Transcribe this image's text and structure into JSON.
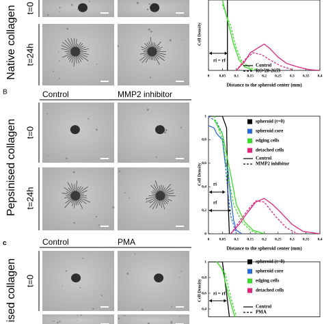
{
  "panels": [
    {
      "material": "Native collagen",
      "rows": [
        "t=0",
        "t=24h"
      ]
    },
    {
      "letter": "B",
      "columns": [
        "Control",
        "MMP2 inhibitor"
      ],
      "material": "Pepsinised collagen",
      "rows": [
        "t=0",
        "t=24h"
      ]
    },
    {
      "letter": "c",
      "columns": [
        "Control",
        "PMA"
      ],
      "material": "ised collagen",
      "rows": [
        "t=0"
      ]
    }
  ],
  "chart_data": [
    {
      "type": "line",
      "ylabel": "Cell Density",
      "xlabel": "Distance to the spheroid center (mm)",
      "xlim": [
        0,
        0.4
      ],
      "ylim": [
        0,
        0.8
      ],
      "xticks": [
        0,
        {
          "value": 0.05,
          "label": "0,05"
        },
        {
          "value": 0.1,
          "label": "0,1"
        },
        {
          "value": 0.15,
          "label": "0,15"
        },
        {
          "value": 0.2,
          "label": "0,2"
        },
        {
          "value": 0.25,
          "label": "0,25"
        },
        {
          "value": 0.3,
          "label": "0,3"
        },
        {
          "value": 0.35,
          "label": "0,35"
        },
        {
          "value": 0.4,
          "label": "0,4"
        }
      ],
      "series": [
        {
          "color": "#000000",
          "dash": false,
          "x": [
            0.068,
            0.068
          ],
          "values": [
            0.8,
            0
          ]
        },
        {
          "color": "#3ddc2a",
          "dash": false,
          "x": [
            0.05,
            0.07,
            0.09,
            0.11,
            0.13,
            0.16
          ],
          "values": [
            0.8,
            0.55,
            0.3,
            0.12,
            0.04,
            0
          ]
        },
        {
          "color": "#3ddc2a",
          "dash": true,
          "x": [
            0.05,
            0.08,
            0.1,
            0.12,
            0.15,
            0.18
          ],
          "values": [
            0.75,
            0.5,
            0.25,
            0.1,
            0.03,
            0
          ]
        },
        {
          "color": "#e0247c",
          "dash": false,
          "x": [
            0.1,
            0.13,
            0.15,
            0.18,
            0.2,
            0.22,
            0.25,
            0.28,
            0.32,
            0.36,
            0.4
          ],
          "values": [
            0,
            0.1,
            0.2,
            0.26,
            0.3,
            0.25,
            0.15,
            0.08,
            0.04,
            0.01,
            0
          ]
        },
        {
          "color": "#e0247c",
          "dash": true,
          "x": [
            0.1,
            0.13,
            0.16,
            0.19,
            0.22,
            0.26,
            0.3
          ],
          "values": [
            0,
            0.12,
            0.2,
            0.18,
            0.12,
            0.05,
            0.01
          ]
        }
      ],
      "legend_lines": [
        {
          "label": "Control",
          "dash": false
        },
        {
          "label": "RO-28-2653",
          "dash": true
        }
      ],
      "annotations": [
        "ri = rf"
      ]
    },
    {
      "type": "line",
      "ylabel": "Cell Density",
      "xlabel": "Distance to the spheroid center (mm)",
      "xlim": [
        0,
        0.4
      ],
      "ylim": [
        0,
        1
      ],
      "xticks": [
        0,
        {
          "value": 0.05,
          "label": "0,05"
        },
        {
          "value": 0.1,
          "label": "0,1"
        },
        {
          "value": 0.15,
          "label": "0,15"
        },
        {
          "value": 0.2,
          "label": "0,2"
        },
        {
          "value": 0.25,
          "label": "0,25"
        },
        {
          "value": 0.3,
          "label": "0,3"
        },
        {
          "value": 0.35,
          "label": "0,35"
        },
        {
          "value": 0.4,
          "label": "0,4"
        }
      ],
      "yticks": [
        0,
        {
          "value": 0.2,
          "label": "0,2"
        },
        {
          "value": 0.4,
          "label": "0,4"
        },
        {
          "value": 0.6,
          "label": "0,6"
        },
        {
          "value": 0.8,
          "label": "0,8"
        },
        1
      ],
      "series": [
        {
          "color": "#000000",
          "dash": false,
          "x": [
            0,
            0.05,
            0.065,
            0.07,
            0.075
          ],
          "values": [
            1,
            1,
            0.9,
            0.3,
            0
          ]
        },
        {
          "color": "#2a6ad8",
          "dash": false,
          "x": [
            0,
            0.02,
            0.03,
            0.05,
            0.06,
            0.07,
            0.08,
            0.09,
            0.1,
            0.12
          ],
          "values": [
            0.92,
            0.9,
            0.85,
            0.8,
            0.6,
            0.55,
            0.3,
            0.12,
            0.03,
            0
          ]
        },
        {
          "color": "#2a6ad8",
          "dash": true,
          "x": [
            0,
            0.03,
            0.05,
            0.06,
            0.07,
            0.08,
            0.1
          ],
          "values": [
            1,
            0.95,
            0.85,
            0.6,
            0.35,
            0.15,
            0
          ]
        },
        {
          "color": "#3ddc2a",
          "dash": false,
          "x": [
            0.02,
            0.05,
            0.08,
            0.1,
            0.13,
            0.16,
            0.2
          ],
          "values": [
            0.97,
            0.85,
            0.5,
            0.25,
            0.1,
            0.03,
            0
          ]
        },
        {
          "color": "#3ddc2a",
          "dash": true,
          "x": [
            0.02,
            0.05,
            0.07,
            0.09,
            0.12,
            0.15,
            0.18
          ],
          "values": [
            1,
            0.8,
            0.5,
            0.25,
            0.1,
            0.03,
            0
          ]
        },
        {
          "color": "#e0247c",
          "dash": false,
          "x": [
            0.08,
            0.11,
            0.14,
            0.17,
            0.2,
            0.23,
            0.26,
            0.3,
            0.34,
            0.4
          ],
          "values": [
            0,
            0.08,
            0.18,
            0.27,
            0.3,
            0.25,
            0.18,
            0.08,
            0.02,
            0
          ]
        },
        {
          "color": "#e0247c",
          "dash": true,
          "x": [
            0.08,
            0.11,
            0.14,
            0.17,
            0.2,
            0.24,
            0.28,
            0.32
          ],
          "values": [
            0,
            0.1,
            0.2,
            0.28,
            0.27,
            0.15,
            0.05,
            0
          ]
        }
      ],
      "legend_markers": [
        {
          "label": "spheroid (t=0)",
          "color": "#000000"
        },
        {
          "label": "spheroid core",
          "color": "#2a6ad8"
        },
        {
          "label": "edging cells",
          "color": "#3ddc2a"
        },
        {
          "label": "detached cells",
          "color": "#e0247c"
        }
      ],
      "legend_lines": [
        {
          "label": "Control",
          "dash": false
        },
        {
          "label": "MMP2 inhibitor",
          "dash": true
        }
      ],
      "annotations": [
        "ri",
        "rf"
      ]
    },
    {
      "type": "line",
      "ylabel": "Cell Density",
      "xlim": [
        0,
        0.4
      ],
      "ylim": [
        0.3,
        1
      ],
      "yticks": [
        {
          "value": 0.4,
          "label": "0,4"
        },
        {
          "value": 0.6,
          "label": "0,6"
        },
        {
          "value": 0.8,
          "label": "0,8"
        },
        1
      ],
      "series": [
        {
          "color": "#000000",
          "dash": false,
          "x": [
            0,
            0.05,
            0.065,
            0.075
          ],
          "values": [
            1,
            1,
            0.6,
            0.3
          ]
        },
        {
          "color": "#3ddc2a",
          "dash": false,
          "x": [
            0.03,
            0.05,
            0.07,
            0.09,
            0.11
          ],
          "values": [
            1,
            0.9,
            0.6,
            0.35,
            0.15
          ]
        },
        {
          "color": "#3ddc2a",
          "dash": true,
          "x": [
            0.03,
            0.06,
            0.08,
            0.1,
            0.12
          ],
          "values": [
            1,
            0.85,
            0.55,
            0.3,
            0.12
          ]
        }
      ],
      "legend_markers": [
        {
          "label": "spheroid (t=0)",
          "color": "#000000"
        },
        {
          "label": "spheroid core",
          "color": "#2a6ad8"
        },
        {
          "label": "edging cells",
          "color": "#3ddc2a"
        },
        {
          "label": "detached cells",
          "color": "#e0247c"
        }
      ],
      "legend_lines": [
        {
          "label": "Control",
          "dash": false
        },
        {
          "label": "PMA",
          "dash": true
        }
      ],
      "annotations": [
        "ri = rf"
      ]
    }
  ]
}
